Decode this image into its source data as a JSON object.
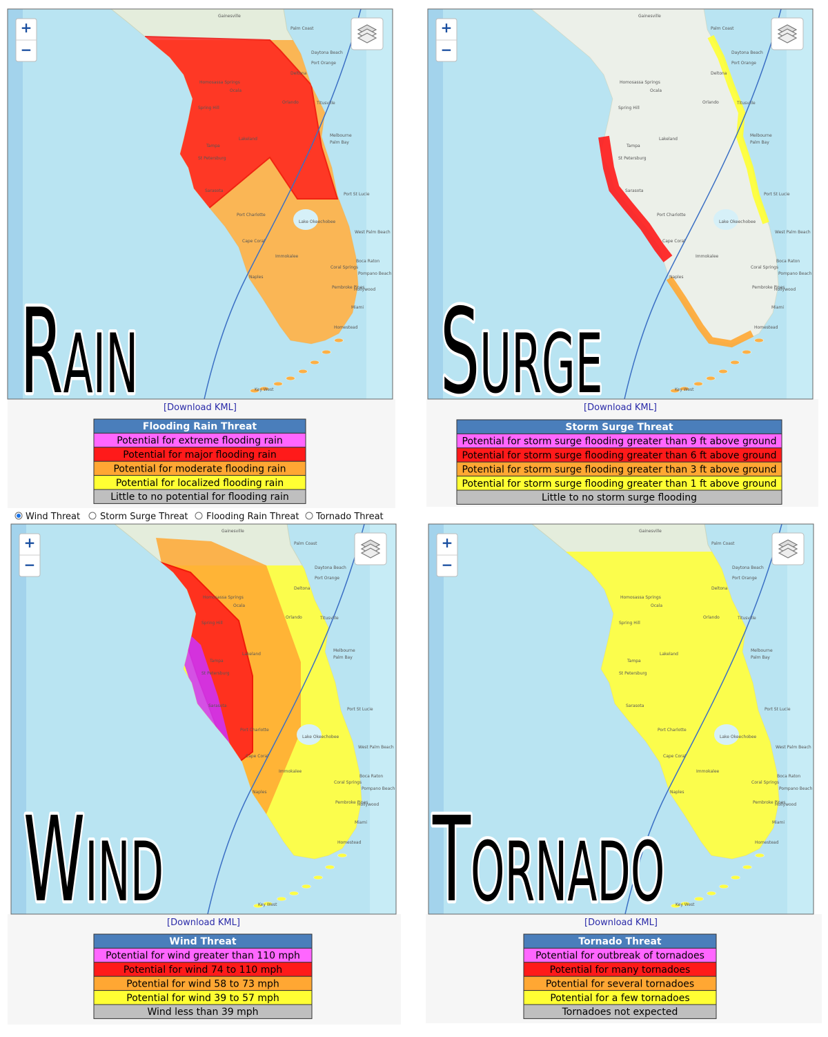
{
  "panels": [
    {
      "label": "Rain",
      "download": "[Download KML]",
      "legend": {
        "title": "Flooding Rain Threat",
        "rows": [
          "Potential for extreme flooding rain",
          "Potential for major flooding rain",
          "Potential for moderate flooding rain",
          "Potential for localized flooding rain",
          "Little to no potential for flooding rain"
        ]
      }
    },
    {
      "label": "Surge",
      "download": "[Download KML]",
      "legend": {
        "title": "Storm Surge Threat",
        "rows": [
          "Potential for storm surge flooding greater than 9 ft above ground",
          "Potential for storm surge flooding greater than 6 ft above ground",
          "Potential for storm surge flooding greater than 3 ft above ground",
          "Potential for storm surge flooding greater than 1 ft above ground",
          "Little to no storm surge flooding"
        ]
      }
    },
    {
      "label": "Wind",
      "download": "[Download KML]",
      "legend": {
        "title": "Wind Threat",
        "rows": [
          "Potential for wind greater than 110 mph",
          "Potential for wind 74 to 110 mph",
          "Potential for wind 58 to 73 mph",
          "Potential for wind 39 to 57 mph",
          "Wind less than 39 mph"
        ]
      }
    },
    {
      "label": "Tornado",
      "download": "[Download KML]",
      "legend": {
        "title": "Tornado Threat",
        "rows": [
          "Potential for outbreak of tornadoes",
          "Potential for many  tornadoes",
          "Potential for several tornadoes",
          "Potential for a few tornadoes",
          "Tornadoes not expected"
        ]
      }
    }
  ],
  "radio_options": [
    "Wind Threat",
    "Storm Surge Threat",
    "Flooding Rain Threat",
    "Tornado Threat"
  ],
  "radio_selected": 0,
  "zoom": [
    "+",
    "−"
  ],
  "map_places": [
    "Gainesville",
    "Palm Coast",
    "Ocala",
    "Daytona Beach",
    "Port Orange",
    "Deltona",
    "Orlando",
    "Homosassa Springs",
    "Spring Hill",
    "Tampa",
    "Lakeland",
    "Titusville",
    "Melbourne",
    "Palm Bay",
    "St Petersburg",
    "Sarasota",
    "Port St Lucie",
    "Port Charlotte",
    "Lake Okeechobee",
    "Cape Coral",
    "West Palm Beach",
    "Immokalee",
    "Boca Raton",
    "Coral Springs",
    "Pompano Beach",
    "Naples",
    "Pembroke Pines",
    "Hollywood",
    "Miami",
    "Homestead",
    "Key West"
  ]
}
